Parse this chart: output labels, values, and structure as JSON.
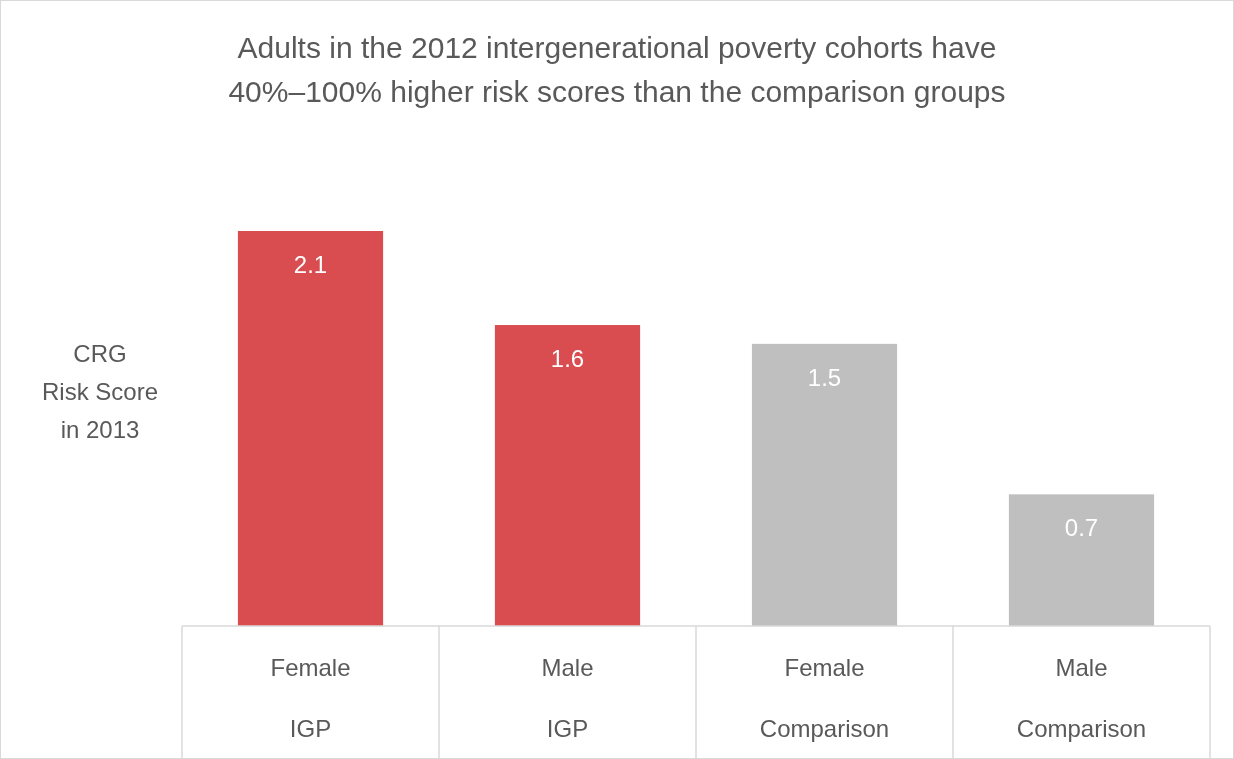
{
  "chart_data": {
    "type": "bar",
    "title": "Adults in the 2012 intergenerational poverty cohorts have\n40%–100% higher risk scores than the comparison groups",
    "ylabel": "CRG\nRisk Score\nin 2013",
    "categories": [
      "Female\nIGP",
      "Male\nIGP",
      "Female\nComparison",
      "Male\nComparison"
    ],
    "values": [
      2.1,
      1.6,
      1.5,
      0.7
    ],
    "colors": [
      "#d94c4f",
      "#d94c4f",
      "#bfbfbf",
      "#bfbfbf"
    ],
    "data_labels": true
  }
}
